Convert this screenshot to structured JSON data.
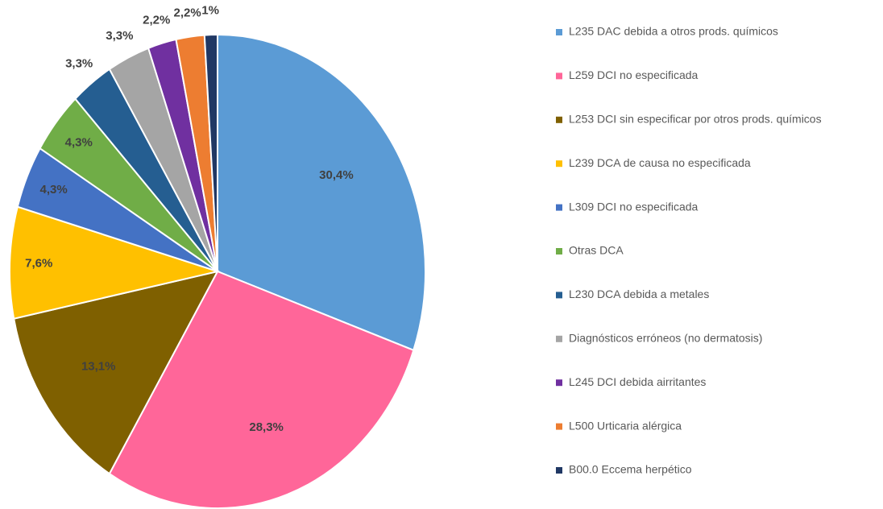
{
  "chart_data": {
    "type": "pie",
    "categories": [
      "L235 DAC debida a otros prods. químicos",
      "L259 DCI no especificada",
      "L253 DCI sin especificar por otros prods. químicos",
      "L239 DCA de causa no especificada",
      "L309 DCI no especificada",
      "Otras DCA",
      "L230 DCA debida a metales",
      "Diagnósticos erróneos (no dermatosis)",
      "L245 DCI debida airritantes",
      "L500 Urticaria alérgica",
      "B00.0 Eccema herpético"
    ],
    "values": [
      30.4,
      28.3,
      13.1,
      7.6,
      4.3,
      4.3,
      3.3,
      3.3,
      2.2,
      2.2,
      1
    ],
    "value_labels": [
      "30,4%",
      "28,3%",
      "13,1%",
      "7,6%",
      "4,3%",
      "4,3%",
      "3,3%",
      "3,3%",
      "2,2%",
      "2,2%",
      "1%"
    ],
    "colors": [
      "#5b9bd5",
      "#ff6699",
      "#7f6000",
      "#ffc000",
      "#4472c4",
      "#70ad47",
      "#255e91",
      "#a5a5a5",
      "#7030a0",
      "#ed7d31",
      "#203864"
    ],
    "legend": "right"
  }
}
